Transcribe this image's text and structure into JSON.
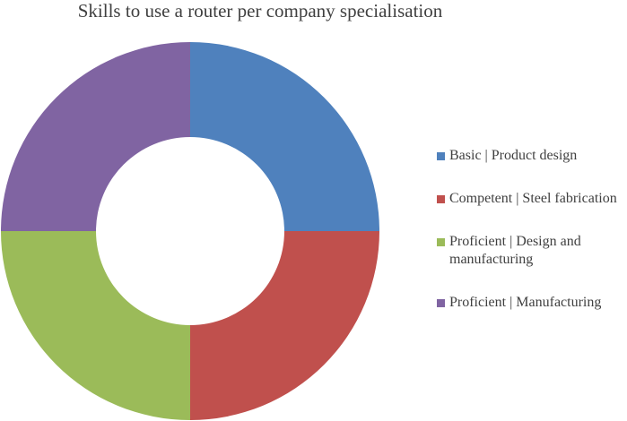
{
  "chart_data": {
    "type": "donut",
    "title": "Skills to use a router per company specialisation",
    "categories": [
      "Basic | Product design",
      "Competent | Steel fabrication",
      "Proficient | Design and manufacturing",
      "Proficient | Manufacturing"
    ],
    "values": [
      25,
      25,
      25,
      25
    ],
    "colors": [
      "#4f81bd",
      "#c0504d",
      "#9bbb59",
      "#8064a2"
    ],
    "legend": "right"
  }
}
